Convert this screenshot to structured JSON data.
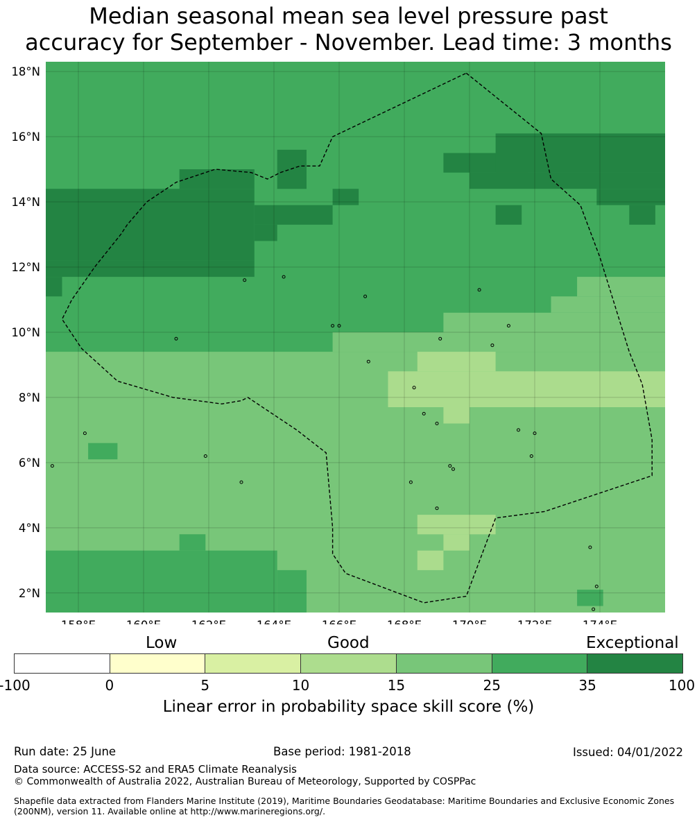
{
  "title": {
    "line1": "Median seasonal mean sea level pressure past",
    "line2": "accuracy for September - November. Lead time: 3 months"
  },
  "map": {
    "lat_labels": [
      "18°N",
      "16°N",
      "14°N",
      "12°N",
      "10°N",
      "8°N",
      "6°N",
      "4°N",
      "2°N"
    ],
    "lon_labels": [
      "158°E",
      "160°E",
      "162°E",
      "164°E",
      "166°E",
      "168°E",
      "170°E",
      "172°E",
      "174°E"
    ],
    "extent": {
      "lon_min": 157.0,
      "lon_max": 176.0,
      "lat_min": 1.4,
      "lat_max": 18.3
    },
    "grid_cell_deg": 0.833,
    "category_colors": {
      "c10": "#abdc8d",
      "c15": "#78c679",
      "c25": "#41ab5d",
      "c35": "#238443"
    },
    "background_category": "c25",
    "cells": [
      {
        "cat": "c35",
        "lon": [
          157.0,
          163.4
        ],
        "lat": [
          12.2,
          14.4
        ]
      },
      {
        "cat": "c35",
        "lon": [
          157.0,
          163.4
        ],
        "lat": [
          11.7,
          12.2
        ]
      },
      {
        "cat": "c35",
        "lon": [
          157.0,
          157.5
        ],
        "lat": [
          11.1,
          11.7
        ]
      },
      {
        "cat": "c35",
        "lon": [
          161.1,
          163.4
        ],
        "lat": [
          14.4,
          15.0
        ]
      },
      {
        "cat": "c35",
        "lon": [
          163.4,
          164.1
        ],
        "lat": [
          12.8,
          13.3
        ]
      },
      {
        "cat": "c35",
        "lon": [
          163.4,
          165.8
        ],
        "lat": [
          13.3,
          13.9
        ]
      },
      {
        "cat": "c35",
        "lon": [
          164.1,
          165.0
        ],
        "lat": [
          14.4,
          15.6
        ]
      },
      {
        "cat": "c35",
        "lon": [
          165.8,
          166.6
        ],
        "lat": [
          13.9,
          14.4
        ]
      },
      {
        "cat": "c35",
        "lon": [
          169.2,
          171.8
        ],
        "lat": [
          14.9,
          15.5
        ]
      },
      {
        "cat": "c35",
        "lon": [
          170.0,
          176.0
        ],
        "lat": [
          14.4,
          14.9
        ]
      },
      {
        "cat": "c35",
        "lon": [
          170.8,
          176.0
        ],
        "lat": [
          14.9,
          16.1
        ]
      },
      {
        "cat": "c35",
        "lon": [
          173.9,
          176.0
        ],
        "lat": [
          13.9,
          14.4
        ]
      },
      {
        "cat": "c35",
        "lon": [
          174.9,
          175.7
        ],
        "lat": [
          13.3,
          13.9
        ]
      },
      {
        "cat": "c35",
        "lon": [
          170.8,
          171.6
        ],
        "lat": [
          13.3,
          13.9
        ]
      },
      {
        "cat": "c15",
        "lon": [
          157.0,
          176.0
        ],
        "lat": [
          1.4,
          9.4
        ]
      },
      {
        "cat": "c15",
        "lon": [
          165.8,
          176.0
        ],
        "lat": [
          9.4,
          10.0
        ]
      },
      {
        "cat": "c15",
        "lon": [
          169.2,
          176.0
        ],
        "lat": [
          10.0,
          10.6
        ]
      },
      {
        "cat": "c15",
        "lon": [
          172.5,
          176.0
        ],
        "lat": [
          10.6,
          11.1
        ]
      },
      {
        "cat": "c15",
        "lon": [
          173.3,
          176.0
        ],
        "lat": [
          11.1,
          11.7
        ]
      },
      {
        "cat": "c25",
        "lon": [
          157.0,
          164.1
        ],
        "lat": [
          1.4,
          3.3
        ]
      },
      {
        "cat": "c25",
        "lon": [
          164.1,
          165.0
        ],
        "lat": [
          1.4,
          2.7
        ]
      },
      {
        "cat": "c25",
        "lon": [
          161.1,
          161.9
        ],
        "lat": [
          3.3,
          3.8
        ]
      },
      {
        "cat": "c25",
        "lon": [
          158.3,
          159.2
        ],
        "lat": [
          6.1,
          6.6
        ]
      },
      {
        "cat": "c25",
        "lon": [
          173.3,
          174.1
        ],
        "lat": [
          1.6,
          2.1
        ]
      },
      {
        "cat": "c10",
        "lon": [
          167.5,
          176.0
        ],
        "lat": [
          7.7,
          8.8
        ]
      },
      {
        "cat": "c10",
        "lon": [
          168.4,
          170.8
        ],
        "lat": [
          8.8,
          9.4
        ]
      },
      {
        "cat": "c10",
        "lon": [
          169.2,
          170.0
        ],
        "lat": [
          7.2,
          7.7
        ]
      },
      {
        "cat": "c10",
        "lon": [
          168.4,
          170.8
        ],
        "lat": [
          3.8,
          4.4
        ]
      },
      {
        "cat": "c10",
        "lon": [
          169.2,
          170.0
        ],
        "lat": [
          3.3,
          3.8
        ]
      },
      {
        "cat": "c10",
        "lon": [
          168.4,
          169.2
        ],
        "lat": [
          2.7,
          3.3
        ]
      }
    ],
    "eez_boundary": [
      [
        169.9,
        17.95
      ],
      [
        172.2,
        16.1
      ],
      [
        172.5,
        14.7
      ],
      [
        173.4,
        13.9
      ],
      [
        174.0,
        12.3
      ],
      [
        174.9,
        9.4
      ],
      [
        175.3,
        8.4
      ],
      [
        175.6,
        6.7
      ],
      [
        175.6,
        5.6
      ],
      [
        173.5,
        4.9
      ],
      [
        172.3,
        4.5
      ],
      [
        170.8,
        4.3
      ],
      [
        169.9,
        1.9
      ],
      [
        168.6,
        1.7
      ],
      [
        166.2,
        2.6
      ],
      [
        165.8,
        3.2
      ],
      [
        165.8,
        4.0
      ],
      [
        165.6,
        6.3
      ],
      [
        164.7,
        7.0
      ],
      [
        163.2,
        8.0
      ],
      [
        163.0,
        7.9
      ],
      [
        162.4,
        7.8
      ],
      [
        160.9,
        8.0
      ],
      [
        159.2,
        8.5
      ],
      [
        158.1,
        9.5
      ],
      [
        157.5,
        10.4
      ],
      [
        157.8,
        11.0
      ],
      [
        158.5,
        12.0
      ],
      [
        158.9,
        12.5
      ],
      [
        159.3,
        13.0
      ],
      [
        159.5,
        13.3
      ],
      [
        160.1,
        14.0
      ],
      [
        161.0,
        14.6
      ],
      [
        162.2,
        15.0
      ],
      [
        163.3,
        14.9
      ],
      [
        163.8,
        14.7
      ],
      [
        164.2,
        14.9
      ],
      [
        164.8,
        15.1
      ],
      [
        165.4,
        15.1
      ],
      [
        165.8,
        16.0
      ],
      [
        169.9,
        17.95
      ]
    ],
    "islands": [
      [
        158.2,
        6.9
      ],
      [
        161.9,
        6.2
      ],
      [
        163.0,
        5.4
      ],
      [
        157.2,
        5.9
      ],
      [
        161.0,
        9.8
      ],
      [
        163.1,
        11.6
      ],
      [
        164.3,
        11.7
      ],
      [
        166.0,
        10.2
      ],
      [
        166.8,
        11.1
      ],
      [
        166.9,
        9.1
      ],
      [
        168.3,
        8.3
      ],
      [
        168.6,
        7.5
      ],
      [
        169.0,
        7.2
      ],
      [
        169.4,
        5.9
      ],
      [
        168.2,
        5.4
      ],
      [
        169.0,
        4.6
      ],
      [
        170.3,
        11.3
      ],
      [
        170.7,
        9.6
      ],
      [
        169.1,
        9.8
      ],
      [
        171.2,
        10.2
      ],
      [
        171.5,
        7.0
      ],
      [
        172.0,
        6.9
      ],
      [
        171.9,
        6.2
      ],
      [
        173.7,
        3.4
      ],
      [
        173.9,
        2.2
      ],
      [
        173.8,
        1.5
      ],
      [
        169.5,
        5.8
      ],
      [
        165.8,
        10.2
      ]
    ]
  },
  "colorbar": {
    "group_labels": {
      "low": "Low",
      "good": "Good",
      "exceptional": "Exceptional"
    },
    "segment_colors": [
      "#ffffff",
      "#ffffcc",
      "#d9f0a3",
      "#addd8e",
      "#78c679",
      "#41ab5d",
      "#238443"
    ],
    "ticks": [
      "-100",
      "0",
      "5",
      "10",
      "15",
      "25",
      "35",
      "100"
    ],
    "title": "Linear error in probability space skill score (%)"
  },
  "footer": {
    "run_date": "Run date: 25 June",
    "base_period": "Base period: 1981-2018",
    "issued": "Issued: 04/01/2022",
    "data_source": "Data source: ACCESS-S2 and ERA5 Climate Reanalysis",
    "copyright": "© Commonwealth of Australia 2022, Australian Bureau of Meteorology, Supported by COSPPac",
    "shapefile": "Shapefile data extracted from Flanders Marine Institute (2019), Maritime Boundaries Geodatabase: Maritime Boundaries and Exclusive Economic Zones (200NM), version 11. Available online at http://www.marineregions.org/."
  }
}
